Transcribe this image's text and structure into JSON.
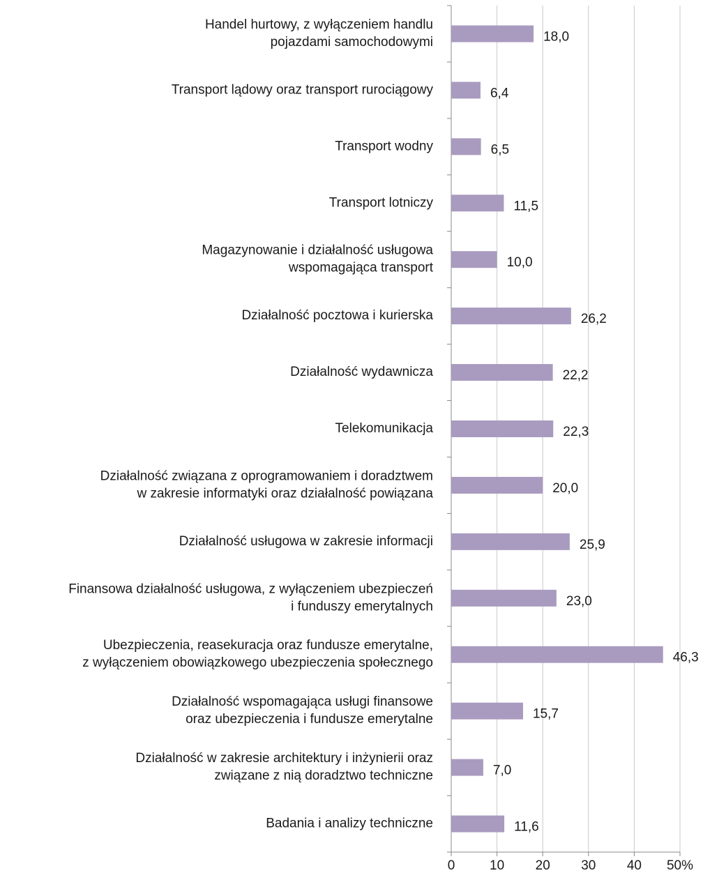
{
  "chart_data": {
    "type": "bar",
    "orientation": "horizontal",
    "categories": [
      "Handel hurtowy, z wyłączeniem handlu\npojazdami samochodowymi",
      "Transport lądowy oraz transport rurociągowy",
      "Transport wodny",
      "Transport lotniczy",
      "Magazynowanie i działalność usługowa\nwspomagająca transport",
      "Działalność pocztowa i kurierska",
      "Działalność wydawnicza",
      "Telekomunikacja",
      "Działalność związana z oprogramowaniem i doradztwem\nw zakresie informatyki oraz działalność powiązana",
      "Działalność usługowa w zakresie informacji",
      "Finansowa działalność usługowa, z wyłączeniem ubezpieczeń\ni funduszy emerytalnych",
      "Ubezpieczenia, reasekuracja oraz fundusze emerytalne,\nz wyłączeniem obowiązkowego ubezpieczenia społecznego",
      "Działalność wspomagająca usługi finansowe\noraz ubezpieczenia i fundusze emerytalne",
      "Działalność w zakresie architektury i inżynierii oraz\nzwiązane z nią doradztwo techniczne",
      "Badania i analizy techniczne"
    ],
    "values": [
      18.0,
      6.4,
      6.5,
      11.5,
      10.0,
      26.2,
      22.2,
      22.3,
      20.0,
      25.9,
      23.0,
      46.3,
      15.7,
      7.0,
      11.6
    ],
    "value_labels": [
      "18,0",
      "6,4",
      "6,5",
      "11,5",
      "10,0",
      "26,2",
      "22,2",
      "22,3",
      "20,0",
      "25,9",
      "23,0",
      "46,3",
      "15,7",
      "7,0",
      "11,6"
    ],
    "color": "#a99bbf",
    "xlim": [
      0,
      50
    ],
    "xticks": [
      0,
      10,
      20,
      30,
      40,
      {
        "value": 50,
        "label": "50%"
      }
    ],
    "grid": true
  }
}
